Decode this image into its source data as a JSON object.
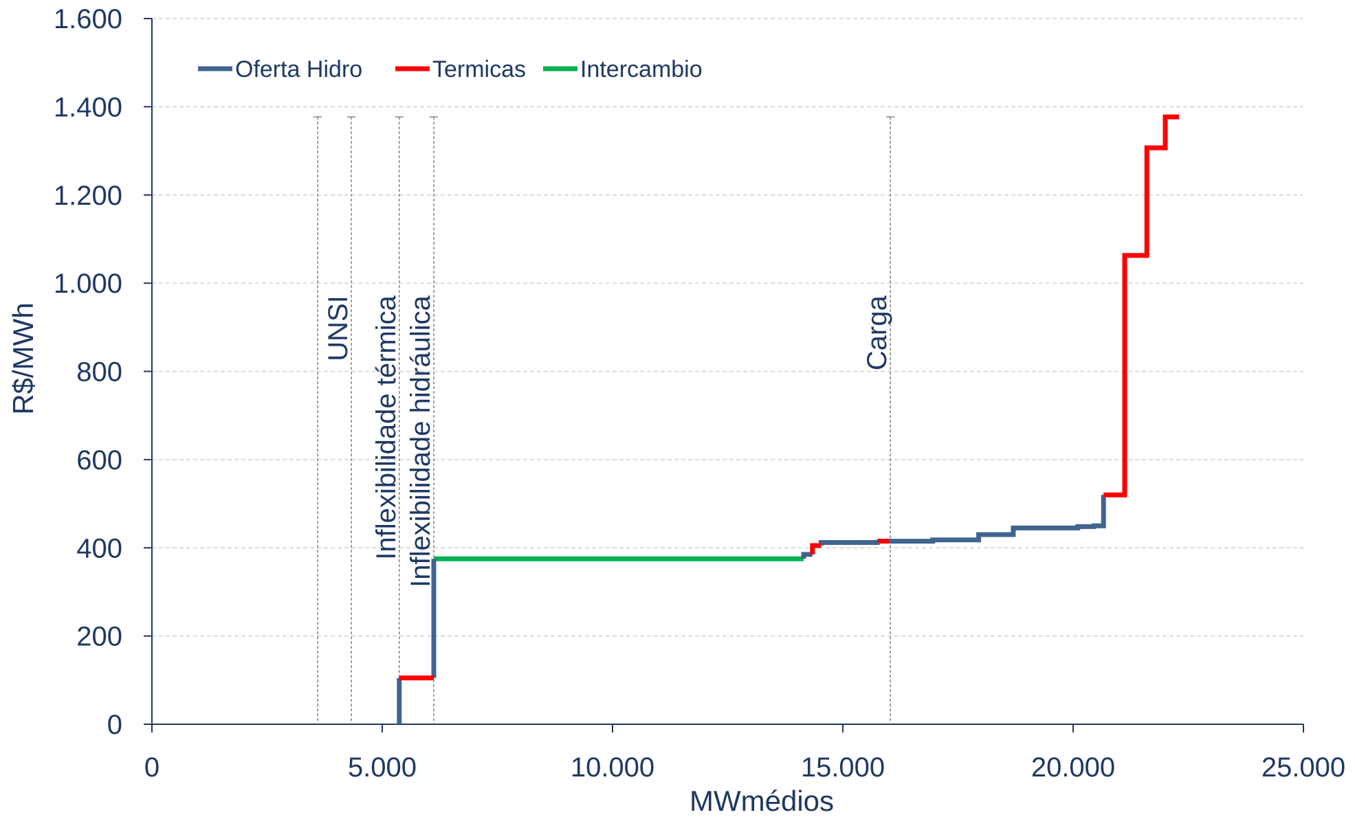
{
  "chart_data": {
    "type": "line",
    "xlabel": "MWmédios",
    "ylabel": "R$/MWh",
    "xlim": [
      0,
      25000
    ],
    "ylim": [
      0,
      1600
    ],
    "x_ticks": [
      0,
      5000,
      10000,
      15000,
      20000,
      25000
    ],
    "x_tick_labels": [
      "0",
      "5.000",
      "10.000",
      "15.000",
      "20.000",
      "25.000"
    ],
    "y_ticks": [
      0,
      200,
      400,
      600,
      800,
      1000,
      1200,
      1400,
      1600
    ],
    "y_tick_labels": [
      "0",
      "200",
      "400",
      "600",
      "800",
      "1.000",
      "1.200",
      "1.400",
      "1.600"
    ],
    "grid": "horizontal dashed",
    "legend_position": "top-left",
    "colors": {
      "hidro": "#41648f",
      "termicas": "#ff0000",
      "intercambio": "#00b050",
      "text": "#1f3864",
      "annotation_line": "#808080"
    },
    "series": [
      {
        "name": "Oferta Hidro",
        "color": "#41648f",
        "segments": [
          [
            [
              5370,
              0
            ],
            [
              5370,
              105
            ]
          ],
          [
            [
              6120,
              105
            ],
            [
              6120,
              375
            ]
          ],
          [
            [
              14150,
              375
            ],
            [
              14150,
              385
            ],
            [
              14340,
              385
            ]
          ],
          [
            [
              14530,
              405
            ],
            [
              14530,
              412
            ],
            [
              15800,
              412
            ]
          ],
          [
            [
              16000,
              415
            ],
            [
              16950,
              415
            ],
            [
              16950,
              418
            ],
            [
              17950,
              418
            ],
            [
              17950,
              430
            ],
            [
              18700,
              430
            ],
            [
              18700,
              445
            ],
            [
              20100,
              445
            ],
            [
              20100,
              448
            ],
            [
              20450,
              448
            ],
            [
              20450,
              450
            ],
            [
              20660,
              450
            ],
            [
              20660,
              520
            ]
          ]
        ]
      },
      {
        "name": "Termicas",
        "color": "#ff0000",
        "segments": [
          [
            [
              5370,
              105
            ],
            [
              6120,
              105
            ]
          ],
          [
            [
              14340,
              385
            ],
            [
              14340,
              405
            ],
            [
              14530,
              405
            ]
          ],
          [
            [
              15800,
              412
            ],
            [
              15800,
              415
            ],
            [
              16000,
              415
            ]
          ],
          [
            [
              20660,
              520
            ],
            [
              21120,
              520
            ],
            [
              21120,
              1063
            ],
            [
              21600,
              1063
            ],
            [
              21600,
              1307
            ],
            [
              22000,
              1307
            ],
            [
              22000,
              1377
            ],
            [
              22300,
              1377
            ]
          ]
        ]
      },
      {
        "name": "Intercambio",
        "color": "#00b050",
        "segments": [
          [
            [
              6120,
              375
            ],
            [
              14150,
              375
            ]
          ]
        ]
      }
    ],
    "annotations": [
      {
        "x": 3600,
        "label": ""
      },
      {
        "x": 4330,
        "label": "UNSI"
      },
      {
        "x": 5370,
        "label": "Inflexibilidade térmica"
      },
      {
        "x": 6120,
        "label": "Inflexibilidade hidráulica"
      },
      {
        "x": 16030,
        "label": "Carga"
      }
    ],
    "annotation_top": 1377
  }
}
